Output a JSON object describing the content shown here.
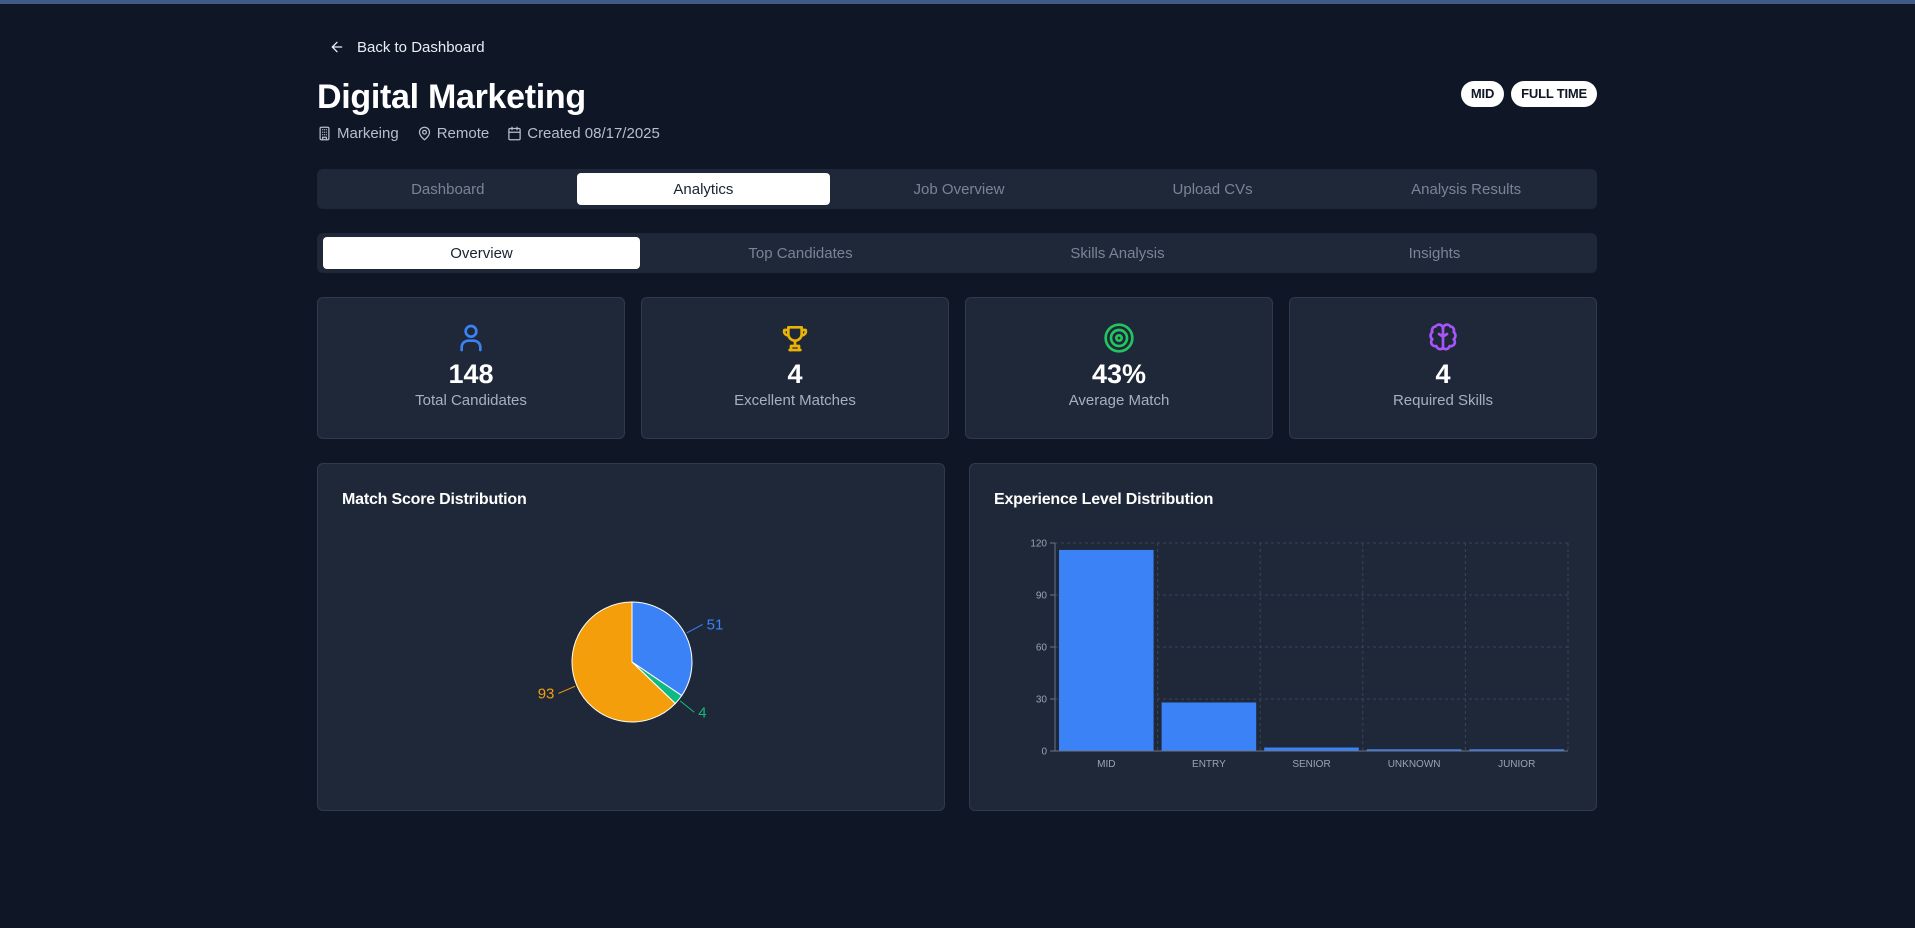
{
  "nav": {
    "back_label": "Back to Dashboard"
  },
  "job": {
    "title": "Digital Marketing",
    "department": "Markeing",
    "location": "Remote",
    "created": "Created 08/17/2025",
    "badges": [
      "MID",
      "FULL TIME"
    ]
  },
  "main_tabs": [
    {
      "label": "Dashboard",
      "active": false
    },
    {
      "label": "Analytics",
      "active": true
    },
    {
      "label": "Job Overview",
      "active": false
    },
    {
      "label": "Upload CVs",
      "active": false
    },
    {
      "label": "Analysis Results",
      "active": false
    }
  ],
  "sub_tabs": [
    {
      "label": "Overview",
      "active": true
    },
    {
      "label": "Top Candidates",
      "active": false
    },
    {
      "label": "Skills Analysis",
      "active": false
    },
    {
      "label": "Insights",
      "active": false
    }
  ],
  "stats": [
    {
      "value": "148",
      "label": "Total Candidates",
      "icon": "user-icon",
      "color": "#3b82f6"
    },
    {
      "value": "4",
      "label": "Excellent Matches",
      "icon": "trophy-icon",
      "color": "#eab308"
    },
    {
      "value": "43%",
      "label": "Average Match",
      "icon": "target-icon",
      "color": "#22c55e"
    },
    {
      "value": "4",
      "label": "Required Skills",
      "icon": "brain-icon",
      "color": "#a855f7"
    }
  ],
  "chart_data": [
    {
      "type": "pie",
      "title": "Match Score Distribution",
      "slices": [
        {
          "value": 51,
          "label": "51",
          "color": "#3b82f6"
        },
        {
          "value": 4,
          "label": "4",
          "color": "#10b981"
        },
        {
          "value": 93,
          "label": "93",
          "color": "#f59e0b"
        }
      ]
    },
    {
      "type": "bar",
      "title": "Experience Level Distribution",
      "categories": [
        "MID",
        "ENTRY",
        "SENIOR",
        "UNKNOWN",
        "JUNIOR"
      ],
      "values": [
        116,
        28,
        2,
        1,
        1
      ],
      "ylim": [
        0,
        120
      ],
      "yticks": [
        0,
        30,
        60,
        90,
        120
      ],
      "grid": true,
      "color": "#3b82f6"
    }
  ]
}
